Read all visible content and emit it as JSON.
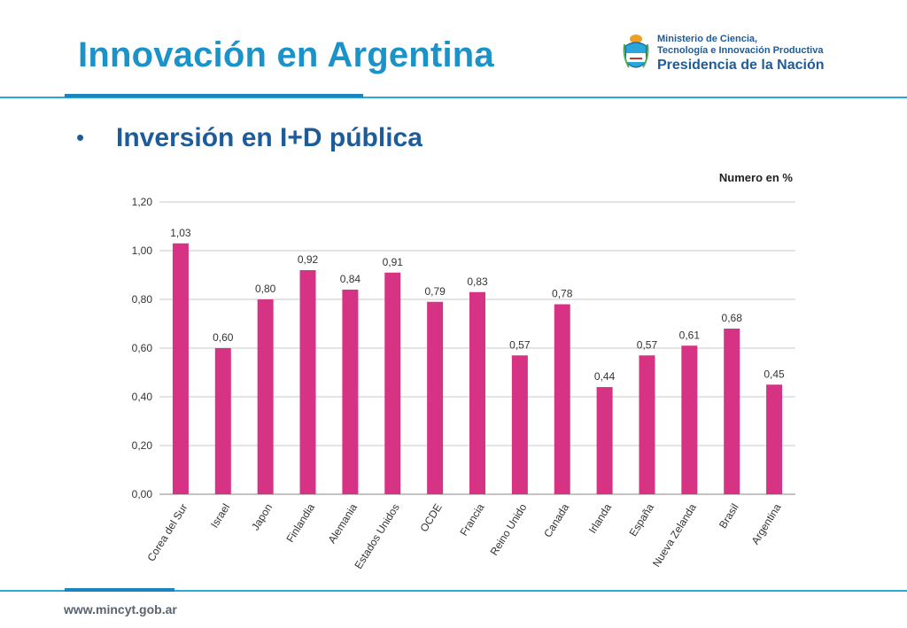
{
  "slide": {
    "title": "Innovación en Argentina",
    "bullet": "Inversión en I+D pública",
    "footer_url": "www.mincyt.gob.ar"
  },
  "logo": {
    "line1": "Ministerio de Ciencia,",
    "line2": "Tecnología e Innovación Productiva",
    "line3": "Presidencia de la Nación",
    "icon": "argentina-coat-of-arms-icon"
  },
  "colors": {
    "title": "#1b93c9",
    "bullet": "#1e5c99",
    "bar": "#d63384",
    "rule": "#2aa7d8"
  },
  "chart_data": {
    "type": "bar",
    "unit_label": "Numero en %",
    "categories": [
      "Corea del Sur",
      "Israel",
      "Japon",
      "Finlandia",
      "Alemania",
      "Estados Unidos",
      "OCDE",
      "Francia",
      "Reino Unido",
      "Canada",
      "Irlanda",
      "España",
      "Nueva Zelanda",
      "Brasil",
      "Argentina"
    ],
    "values": [
      1.03,
      0.6,
      0.8,
      0.92,
      0.84,
      0.91,
      0.79,
      0.83,
      0.57,
      0.78,
      0.44,
      0.57,
      0.61,
      0.68,
      0.45
    ],
    "value_labels": [
      "1,03",
      "0,60",
      "0,80",
      "0,92",
      "0,84",
      "0,91",
      "0,79",
      "0,83",
      "0,57",
      "0,78",
      "0,44",
      "0,57",
      "0,61",
      "0,68",
      "0,45"
    ],
    "yticks": [
      "0,00",
      "0,20",
      "0,40",
      "0,60",
      "0,80",
      "1,00",
      "1,20"
    ],
    "ylim": [
      0,
      1.2
    ],
    "grid": true,
    "xlabel": "",
    "ylabel": ""
  }
}
